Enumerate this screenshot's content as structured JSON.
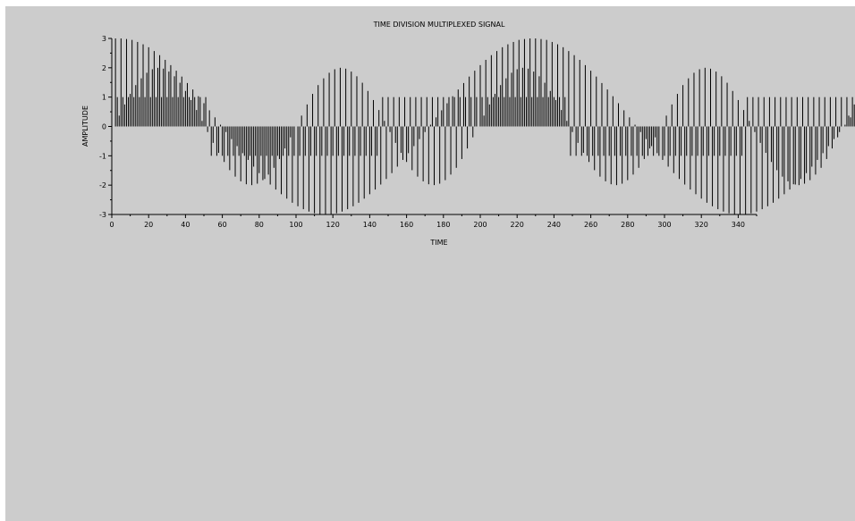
{
  "chart_data": {
    "type": "stem",
    "title": "TIME DIVISION MULTIPLEXED SIGNAL",
    "xlabel": "TIME",
    "ylabel": "AMPLITUDE",
    "xlim": [
      0,
      350
    ],
    "ylim": [
      -3,
      3
    ],
    "x_ticks": [
      0,
      20,
      40,
      60,
      80,
      100,
      120,
      140,
      160,
      180,
      200,
      220,
      240,
      260,
      280,
      300,
      320,
      340
    ],
    "y_ticks": [
      -3,
      -2,
      -1,
      0,
      1,
      2,
      3
    ],
    "x_tick_labels": [
      "0",
      "20",
      "40",
      "60",
      "80",
      "100",
      "120",
      "140",
      "160",
      "180",
      "200",
      "220",
      "240",
      "260",
      "280",
      "300",
      "320",
      "340"
    ],
    "y_tick_labels": [
      "-3",
      "-2",
      "-1",
      "0",
      "1",
      "2",
      "3"
    ],
    "grid": false,
    "stem_color": "#000000",
    "x_start": 2,
    "x_step": 1,
    "values": [
      3.0,
      1.0,
      0.37,
      3.0,
      1.0,
      0.75,
      2.98,
      1.0,
      1.11,
      2.95,
      1.0,
      1.41,
      2.88,
      1.0,
      1.64,
      2.8,
      1.0,
      1.83,
      2.7,
      1.0,
      1.95,
      2.57,
      1.0,
      2.0,
      2.43,
      1.0,
      1.97,
      2.27,
      1.0,
      1.87,
      2.09,
      1.0,
      1.71,
      1.9,
      1.0,
      1.49,
      1.7,
      1.0,
      1.21,
      1.48,
      1.0,
      0.9,
      1.26,
      1.0,
      0.56,
      1.03,
      1.0,
      0.19,
      0.79,
      1.0,
      -0.19,
      0.55,
      -1.0,
      -0.56,
      0.31,
      -1.0,
      -0.9,
      0.06,
      -1.0,
      -1.21,
      -0.19,
      -1.0,
      -1.49,
      -0.43,
      -1.0,
      -1.71,
      -0.67,
      -1.0,
      -1.87,
      -0.91,
      -1.0,
      -1.97,
      -1.14,
      -1.0,
      -2.0,
      -1.37,
      -1.0,
      -1.95,
      -1.59,
      -1.0,
      -1.83,
      -1.79,
      -1.0,
      -1.64,
      -1.98,
      -1.0,
      -1.41,
      -2.15,
      -1.0,
      -1.11,
      -2.31,
      -1.0,
      -0.75,
      -2.46,
      -1.0,
      -0.37,
      -2.6,
      -1.0,
      0.0,
      -2.72,
      -1.0,
      0.37,
      -2.82,
      -1.0,
      0.75,
      -2.9,
      -1.0,
      1.11,
      -2.96,
      -1.0,
      1.41,
      -2.99,
      -1.0,
      1.64,
      -3.0,
      -1.0,
      1.83,
      -2.99,
      -1.0,
      1.95,
      -2.96,
      -1.0,
      2.0,
      -2.9,
      -1.0,
      1.97,
      -2.82,
      -1.0,
      1.87,
      -2.72,
      -1.0,
      1.71,
      -2.6,
      -1.0,
      1.49,
      -2.46,
      -1.0,
      1.21,
      -2.31,
      -1.0,
      0.9,
      -2.15,
      -1.0,
      0.56,
      -1.98,
      1.0,
      0.19,
      -1.79,
      1.0,
      -0.19,
      -1.59,
      1.0,
      -0.56,
      -1.37,
      1.0,
      -0.9,
      -1.14,
      1.0,
      -1.21,
      -0.91,
      1.0,
      -1.49,
      -0.67,
      1.0,
      -1.71,
      -0.43,
      1.0,
      -1.87,
      -0.19,
      1.0,
      -1.97,
      0.06,
      1.0,
      -2.0,
      0.31,
      1.0,
      -1.95,
      0.55,
      1.0,
      -1.83,
      0.79,
      1.0,
      -1.64,
      1.03,
      1.0,
      -1.41,
      1.26,
      1.0,
      -1.11,
      1.48,
      1.0,
      -0.75,
      1.7,
      1.0,
      -0.37,
      1.9,
      1.0,
      0.0,
      2.09,
      1.0,
      0.37,
      2.27,
      1.0,
      0.75,
      2.43,
      1.0,
      1.11,
      2.57,
      1.0,
      1.41,
      2.7,
      1.0,
      1.64,
      2.8,
      1.0,
      1.83,
      2.88,
      1.0,
      1.95,
      2.95,
      1.0,
      2.0,
      2.98,
      1.0,
      1.97,
      3.0,
      1.0,
      1.87,
      3.0,
      1.0,
      1.71,
      2.98,
      1.0,
      1.49,
      2.95,
      1.0,
      1.21,
      2.88,
      1.0,
      0.9,
      2.8,
      1.0,
      0.56,
      2.7,
      1.0,
      0.19,
      2.57,
      -1.0,
      -0.19,
      2.43,
      -1.0,
      -0.56,
      2.27,
      -1.0,
      -0.9,
      2.09,
      -1.0,
      -1.21,
      1.9,
      -1.0,
      -1.49,
      1.7,
      -1.0,
      -1.71,
      1.48,
      -1.0,
      -1.87,
      1.26,
      -1.0,
      -1.97,
      1.03,
      -1.0,
      -2.0,
      0.79,
      -1.0,
      -1.95,
      0.55,
      -1.0,
      -1.83,
      0.31,
      -1.0,
      -1.64,
      0.06,
      -1.0,
      -1.41,
      -0.19,
      -1.0,
      -1.11,
      -0.43,
      -1.0,
      -0.75,
      -0.67,
      -1.0,
      -0.37,
      -0.91,
      -1.0,
      0.0,
      -1.14,
      -1.0,
      0.37,
      -1.37,
      -1.0,
      0.75,
      -1.59,
      -1.0,
      1.11,
      -1.79,
      -1.0,
      1.41,
      -1.98,
      -1.0,
      1.64,
      -2.15,
      -1.0,
      1.83,
      -2.31,
      -1.0,
      1.95,
      -2.46,
      -1.0,
      2.0,
      -2.6,
      -1.0,
      1.97,
      -2.72,
      -1.0,
      1.87,
      -2.82,
      -1.0,
      1.71,
      -2.9,
      -1.0,
      1.49,
      -2.96,
      -1.0,
      1.21,
      -2.99,
      -1.0,
      0.9,
      -3.0,
      -1.0,
      0.56,
      -2.99,
      1.0,
      0.19,
      -2.96,
      1.0,
      -0.19,
      -2.9,
      1.0,
      -0.56,
      -2.82,
      1.0,
      -0.9,
      -2.72,
      1.0,
      -1.21,
      -2.6,
      1.0,
      -1.49,
      -2.46,
      1.0,
      -1.71,
      -2.31,
      1.0,
      -1.87,
      -2.15,
      1.0,
      -1.97,
      -1.98,
      1.0,
      -2.0,
      -1.79,
      1.0,
      -1.95,
      -1.59,
      1.0,
      -1.83,
      -1.37,
      1.0,
      -1.64,
      -1.14,
      1.0,
      -1.41,
      -0.91,
      1.0,
      -1.11,
      -0.67,
      1.0,
      -0.75,
      -0.43,
      1.0,
      -0.37,
      -0.19,
      1.0,
      0.0,
      0.06,
      1.0,
      0.37,
      0.31,
      1.0,
      0.75,
      0.55,
      1.0,
      1.11,
      0.79,
      1.0,
      1.41,
      1.03,
      1.0,
      1.64,
      1.26,
      1.0,
      1.83,
      1.48,
      1.0,
      1.95,
      1.7,
      1.0,
      2.0,
      1.9,
      1.0,
      1.97,
      2.09,
      1.0,
      1.87,
      2.27,
      1.0,
      1.71,
      2.43,
      1.0,
      1.49,
      2.57,
      1.0,
      1.21,
      2.7,
      1.0,
      0.9,
      2.8,
      1.0,
      0.56,
      2.88,
      1.0,
      0.19,
      2.95,
      1.0,
      -0.19,
      2.98,
      -1.0,
      -0.56,
      3.0,
      -1.0,
      -0.9,
      3.0,
      -1.0,
      -1.21,
      2.98,
      -1.0,
      -1.49,
      2.95,
      -1.0,
      -1.71,
      2.88,
      -1.0,
      -1.87,
      2.8,
      -1.0,
      -1.97,
      2.7,
      -1.0,
      -2.0,
      2.57,
      -1.0,
      -1.95,
      2.43,
      -1.0,
      -1.83,
      2.27,
      -1.0,
      -1.64,
      2.09,
      -1.0,
      -1.41,
      1.9,
      -1.0,
      -1.11,
      1.7,
      -1.0,
      -0.75,
      1.48,
      -1.0,
      -0.37,
      1.26,
      -1.0,
      0.0,
      1.03,
      -1.0,
      0.37,
      0.79,
      -1.0,
      0.75,
      0.55,
      -1.0,
      1.11,
      0.31,
      -1.0,
      1.41,
      0.06,
      -1.0,
      1.64,
      -0.19,
      -1.0,
      1.83,
      -0.43,
      -1.0,
      1.95,
      -0.67,
      -1.0,
      2.0,
      -0.91,
      -1.0,
      1.97,
      -1.14,
      -1.0,
      1.87,
      -1.37,
      -1.0,
      1.71,
      -1.59,
      -1.0,
      1.49,
      -1.79,
      -1.0,
      1.21,
      -1.98,
      -1.0,
      0.9,
      -2.15,
      -1.0,
      0.56,
      -2.31,
      1.0,
      0.19,
      -2.46,
      1.0,
      -0.19,
      -2.6,
      1.0,
      -0.56,
      -2.72,
      1.0,
      -0.9,
      -2.82,
      1.0,
      -1.21,
      -2.9,
      1.0,
      -1.49,
      -2.96,
      1.0,
      -1.71,
      -2.99,
      1.0,
      -1.87,
      -3.0,
      1.0,
      -1.97,
      -2.99,
      1.0,
      -2.0,
      -2.96,
      1.0,
      -1.95,
      -2.9,
      1.0,
      -1.83,
      -2.82,
      1.0,
      -1.64,
      -2.72,
      1.0,
      -1.41,
      -2.6,
      1.0,
      -1.11,
      -2.46,
      1.0,
      -0.75,
      -2.31,
      1.0,
      -0.37,
      -2.15,
      1.0,
      0.0,
      -1.98,
      1.0,
      0.37,
      -1.79,
      1.0,
      0.75,
      -1.59,
      1.0,
      1.11,
      -1.37,
      1.0,
      1.41,
      -1.14,
      1.0,
      1.64,
      -0.91,
      1.0,
      1.83,
      -0.67,
      1.0,
      1.95,
      -0.43,
      1.0,
      2.0,
      -0.19,
      1.0,
      1.97,
      0.06,
      1.0,
      1.87,
      0.31,
      1.0,
      1.71,
      0.55,
      1.0,
      1.49,
      0.79,
      1.0,
      1.21,
      1.03,
      1.0,
      0.9,
      1.26,
      1.0,
      0.56,
      1.48,
      1.0,
      0.19,
      1.7,
      -1.0,
      -0.19,
      1.9,
      -1.0,
      -0.56,
      2.09,
      -1.0,
      -0.9,
      2.27,
      -1.0,
      -1.21,
      2.43,
      -1.0,
      -1.49,
      2.57,
      -1.0,
      -1.71,
      2.7,
      -1.0,
      -1.87,
      2.8,
      -1.0,
      -1.97,
      2.88,
      -1.0,
      -2.0,
      2.95,
      -1.0,
      -1.95,
      2.98,
      -1.0,
      -1.83,
      3.0,
      -1.0,
      -1.64,
      3.0,
      -1.0,
      -1.41,
      2.98,
      -1.0,
      -1.11,
      2.95,
      -1.0,
      -0.75,
      2.88,
      -1.0,
      -0.37,
      2.8,
      -1.0,
      0.0,
      2.7,
      -1.0,
      0.37,
      2.57,
      -1.0,
      0.75,
      2.43,
      -1.0,
      1.11,
      2.27,
      -1.0,
      1.41,
      2.09,
      -1.0,
      1.64,
      1.9,
      -1.0,
      1.83,
      1.7,
      -1.0,
      1.95,
      1.48,
      -1.0,
      2.0,
      1.26,
      -1.0,
      1.97,
      1.03,
      -1.0,
      1.87,
      0.79,
      -1.0,
      1.71,
      0.55,
      -1.0,
      1.49,
      0.31,
      -1.0,
      1.21,
      0.06,
      -1.0,
      0.9,
      -0.19,
      1.0,
      0.56,
      -0.43,
      1.0,
      0.19,
      -0.67,
      1.0,
      -0.19,
      -0.91,
      1.0,
      -0.56,
      -1.14,
      1.0,
      -0.9,
      -1.37,
      1.0,
      -1.21,
      -1.59,
      1.0,
      -1.49,
      -1.79,
      1.0,
      -1.71,
      -1.98,
      1.0,
      -1.87,
      -2.15,
      1.0,
      -1.97,
      -2.31,
      1.0,
      -2.0,
      -2.46,
      1.0,
      -1.95,
      -2.6,
      1.0,
      -1.83,
      -2.72,
      1.0,
      -1.64,
      -2.82,
      1.0,
      -1.41,
      -2.9,
      1.0,
      -1.11,
      -2.96,
      1.0,
      -0.75,
      -2.99,
      1.0,
      -0.37,
      -3.0,
      1.0,
      0.0,
      -2.99,
      1.0,
      0.37,
      -2.96,
      1.0,
      0.75,
      -2.9,
      1.0,
      1.11,
      -2.82,
      1.0,
      1.41,
      -2.72,
      1.0,
      1.64,
      -2.6,
      1.0,
      1.83,
      -2.46,
      1.0,
      1.95,
      -2.31,
      1.0,
      2.0,
      -2.15,
      1.0,
      1.97,
      -1.98,
      1.0,
      1.87,
      -1.79,
      1.0,
      1.71,
      -1.59,
      1.0,
      1.49,
      -1.37,
      1.0,
      1.21,
      -1.14,
      1.0,
      0.9,
      -0.91,
      1.0,
      0.56,
      -0.67,
      1.0,
      0.19,
      -0.43,
      -1.0,
      -0.19,
      -0.19,
      -1.0,
      -0.56,
      0.06,
      -1.0,
      -0.9,
      0.31,
      -1.0,
      -1.21,
      0.55,
      -1.0,
      -1.49,
      0.79,
      -1.0,
      -1.71,
      1.03,
      -1.0,
      -1.87,
      1.26,
      -1.0,
      -1.97,
      1.48,
      -1.0,
      -2.0,
      1.7,
      -1.0,
      -1.95,
      1.9,
      -1.0,
      -1.83,
      2.09,
      -1.0,
      -1.64,
      2.27,
      -1.0,
      -1.41,
      2.43,
      -1.0,
      -1.11,
      2.57,
      -1.0,
      -0.75,
      2.7,
      -1.0,
      -0.37,
      2.8,
      -1.0,
      0.0,
      2.88,
      1.0,
      0.37,
      2.95,
      1.0,
      0.75,
      2.98,
      1.0
    ]
  }
}
